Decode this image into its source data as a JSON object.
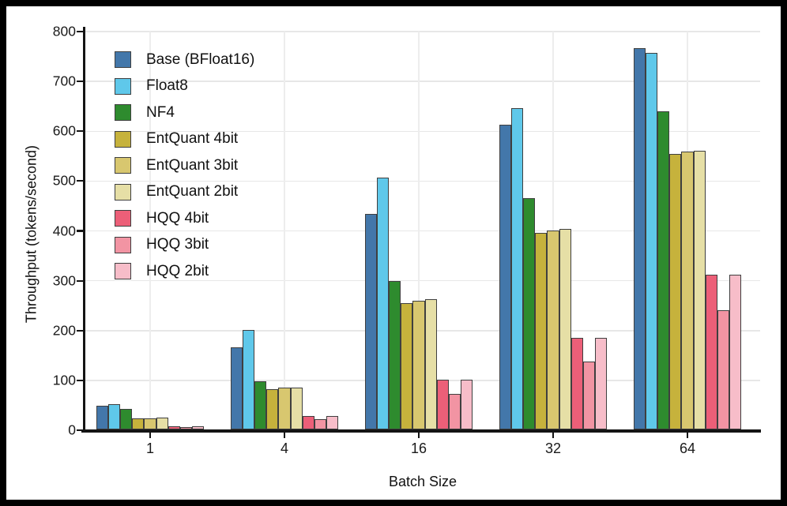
{
  "chart_data": {
    "type": "bar",
    "title": "",
    "xlabel": "Batch Size",
    "ylabel": "Throughput (tokens/second)",
    "categories": [
      "1",
      "4",
      "16",
      "32",
      "64"
    ],
    "series": [
      {
        "name": "Base (BFloat16)",
        "color": "#4377AA",
        "values": [
          48,
          164,
          433,
          612,
          765
        ]
      },
      {
        "name": "Float8",
        "color": "#5FC8EA",
        "values": [
          51,
          199,
          505,
          645,
          756
        ]
      },
      {
        "name": "NF4",
        "color": "#2E8B2E",
        "values": [
          41,
          96,
          298,
          464,
          638
        ]
      },
      {
        "name": "EntQuant 4bit",
        "color": "#C6B23C",
        "values": [
          22,
          81,
          254,
          395,
          553
        ]
      },
      {
        "name": "EntQuant 3bit",
        "color": "#D8C76F",
        "values": [
          22,
          84,
          258,
          400,
          557
        ]
      },
      {
        "name": "EntQuant 2bit",
        "color": "#E6DFA6",
        "values": [
          23,
          84,
          261,
          403,
          560
        ]
      },
      {
        "name": "HQQ 4bit",
        "color": "#EC5F78",
        "values": [
          7,
          27,
          100,
          184,
          310
        ]
      },
      {
        "name": "HQQ 3bit",
        "color": "#F294A3",
        "values": [
          5,
          20,
          72,
          137,
          240
        ]
      },
      {
        "name": "HQQ 2bit",
        "color": "#F7BDC9",
        "values": [
          7,
          27,
          100,
          183,
          310
        ]
      }
    ],
    "ylim": [
      0,
      800
    ],
    "yticks": [
      0,
      100,
      200,
      300,
      400,
      500,
      600,
      700,
      800
    ],
    "grid": true,
    "legend_position": "upper left",
    "bar_edge_color": "#3f3f3f",
    "grid_color": "#e7e7e7",
    "axis_color": "#141414"
  }
}
